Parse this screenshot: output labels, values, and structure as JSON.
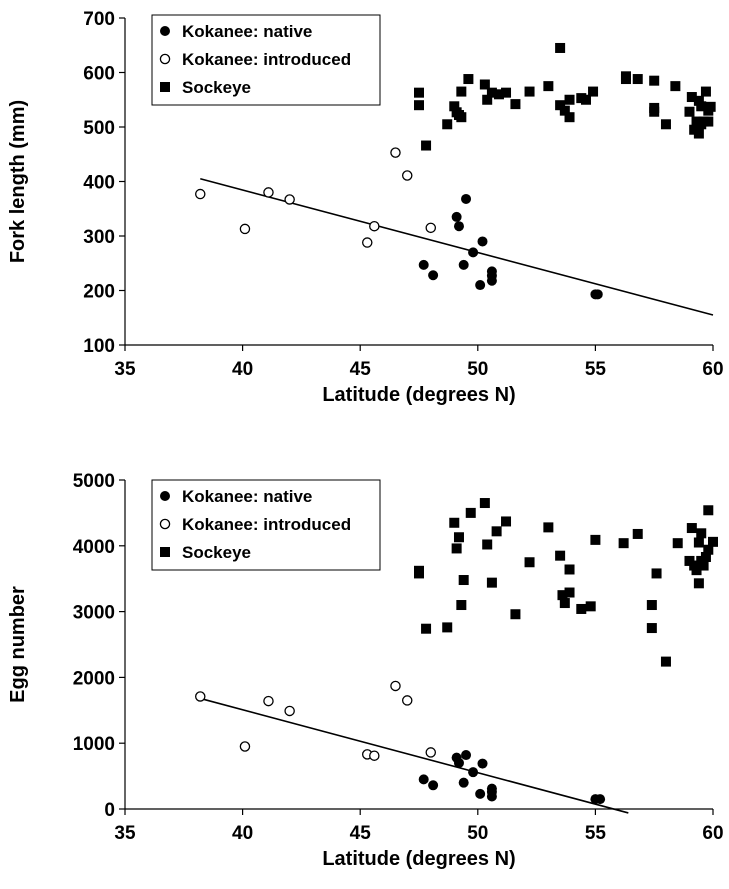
{
  "chart_data": [
    {
      "type": "scatter",
      "title": "",
      "xlabel": "Latitude (degrees N)",
      "ylabel": "Fork length (mm)",
      "xlim": [
        35,
        60
      ],
      "ylim": [
        100,
        700
      ],
      "xticks": [
        "35",
        "40",
        "45",
        "50",
        "55",
        "60"
      ],
      "yticks": [
        "100",
        "200",
        "300",
        "400",
        "500",
        "600",
        "700"
      ],
      "legend": {
        "position": "top-left"
      },
      "series": [
        {
          "name": "Kokanee: native",
          "marker": "filled-circle",
          "x": [
            47.7,
            48.1,
            49.1,
            49.2,
            49.4,
            49.5,
            49.8,
            50.1,
            50.2,
            50.6,
            50.6,
            50.6,
            55.0,
            55.1
          ],
          "y": [
            247,
            228,
            335,
            318,
            247,
            368,
            270,
            210,
            290,
            235,
            227,
            218,
            193,
            193
          ]
        },
        {
          "name": "Kokanee: introduced",
          "marker": "open-circle",
          "x": [
            38.2,
            40.1,
            41.1,
            42.0,
            45.3,
            45.6,
            46.5,
            47.0,
            48.0
          ],
          "y": [
            377,
            313,
            380,
            367,
            288,
            318,
            453,
            411,
            315
          ]
        },
        {
          "name": "Sockeye",
          "marker": "filled-square",
          "x": [
            47.5,
            47.5,
            47.8,
            48.7,
            49.0,
            49.1,
            49.2,
            49.3,
            49.3,
            49.6,
            50.3,
            50.4,
            50.6,
            50.9,
            51.2,
            51.6,
            52.2,
            53.0,
            53.5,
            53.5,
            53.7,
            53.9,
            53.9,
            54.4,
            54.6,
            54.9,
            56.3,
            56.3,
            56.8,
            57.5,
            57.5,
            57.5,
            58.0,
            58.4,
            59.0,
            59.1,
            59.2,
            59.3,
            59.4,
            59.4,
            59.5,
            59.5,
            59.6,
            59.7,
            59.8,
            59.8,
            59.9
          ],
          "y": [
            563,
            540,
            466,
            505,
            538,
            527,
            522,
            565,
            518,
            588,
            578,
            550,
            563,
            560,
            563,
            542,
            565,
            575,
            645,
            540,
            530,
            550,
            518,
            553,
            550,
            565,
            593,
            588,
            588,
            585,
            535,
            528,
            505,
            575,
            528,
            555,
            495,
            510,
            488,
            548,
            538,
            505,
            510,
            565,
            530,
            510,
            537
          ]
        }
      ],
      "fit_line": {
        "x": [
          38.2,
          60.0
        ],
        "y": [
          405,
          155
        ]
      }
    },
    {
      "type": "scatter",
      "title": "",
      "xlabel": "Latitude (degrees N)",
      "ylabel": "Egg number",
      "xlim": [
        35,
        60
      ],
      "ylim": [
        0,
        5000
      ],
      "xticks": [
        "35",
        "40",
        "45",
        "50",
        "55",
        "60"
      ],
      "yticks": [
        "0",
        "1000",
        "2000",
        "3000",
        "4000",
        "5000"
      ],
      "legend": {
        "position": "top-center"
      },
      "series": [
        {
          "name": "Kokanee: native",
          "marker": "filled-circle",
          "x": [
            47.7,
            48.1,
            49.1,
            49.2,
            49.4,
            49.5,
            49.8,
            50.1,
            50.2,
            50.6,
            50.6,
            50.6,
            55.0,
            55.2
          ],
          "y": [
            450,
            360,
            780,
            700,
            400,
            820,
            560,
            230,
            690,
            310,
            260,
            190,
            150,
            150
          ]
        },
        {
          "name": "Kokanee: introduced",
          "marker": "open-circle",
          "x": [
            38.2,
            40.1,
            41.1,
            42.0,
            45.3,
            45.6,
            46.5,
            47.0,
            48.0
          ],
          "y": [
            1710,
            950,
            1640,
            1490,
            830,
            810,
            1870,
            1650,
            860
          ]
        },
        {
          "name": "Sockeye",
          "marker": "filled-square",
          "x": [
            47.5,
            47.5,
            47.8,
            48.7,
            49.0,
            49.1,
            49.2,
            49.3,
            49.4,
            49.7,
            50.3,
            50.4,
            50.6,
            50.8,
            51.2,
            51.6,
            52.2,
            53.0,
            53.5,
            53.6,
            53.7,
            53.9,
            53.9,
            54.4,
            54.8,
            55.0,
            56.2,
            56.8,
            57.4,
            57.4,
            57.6,
            58.0,
            58.5,
            59.0,
            59.1,
            59.2,
            59.3,
            59.4,
            59.4,
            59.5,
            59.5,
            59.6,
            59.7,
            59.8,
            59.8,
            60.0
          ],
          "y": [
            3620,
            3580,
            2740,
            2760,
            4350,
            3960,
            4130,
            3100,
            3480,
            4500,
            4650,
            4020,
            3440,
            4220,
            4370,
            2960,
            3750,
            4280,
            3850,
            3250,
            3130,
            3640,
            3290,
            3040,
            3080,
            4090,
            4040,
            4180,
            3100,
            2750,
            3580,
            2240,
            4040,
            3770,
            4270,
            3700,
            3630,
            4050,
            3430,
            4190,
            3770,
            3700,
            3830,
            4540,
            3940,
            4060
          ]
        }
      ],
      "fit_line": {
        "x": [
          38.2,
          56.4
        ],
        "y": [
          1680,
          -60
        ]
      }
    }
  ]
}
